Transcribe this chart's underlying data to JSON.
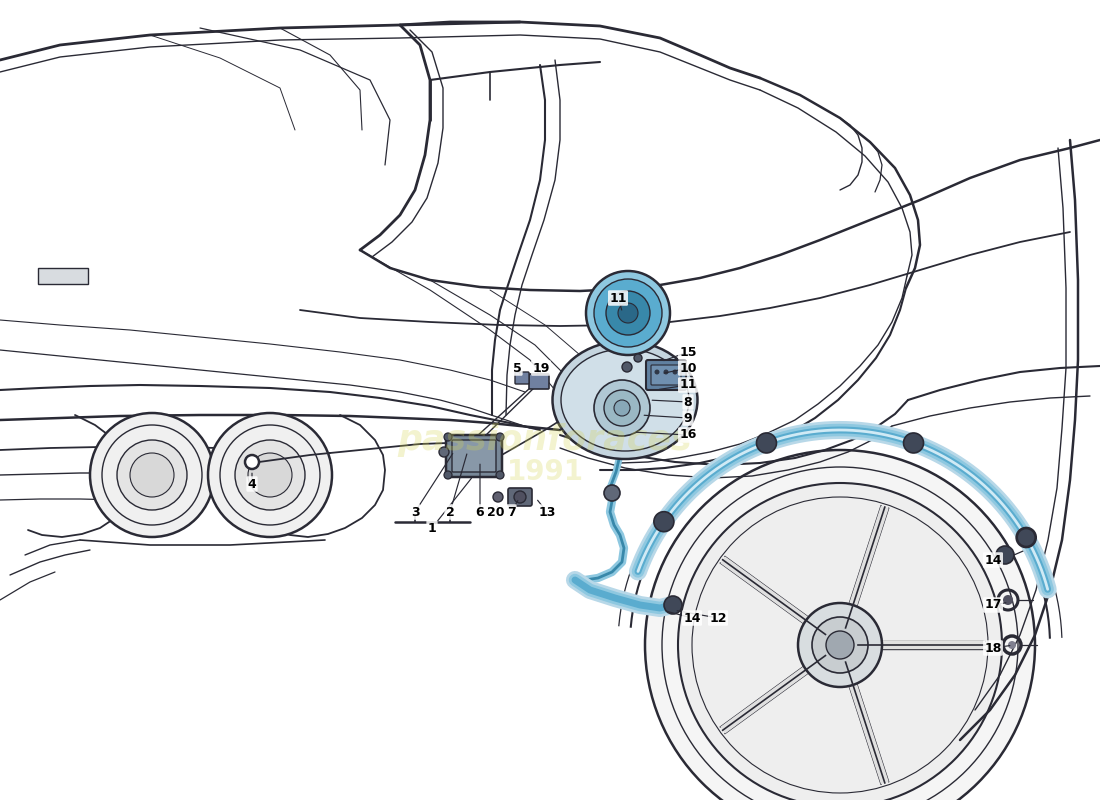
{
  "bg_color": "#ffffff",
  "lc": "#2a2a35",
  "light_blue": "#8ec8e0",
  "mid_blue": "#5aaccf",
  "dark_blue": "#3888aa",
  "watermark1": "passionforaces",
  "watermark2": "1991",
  "wm_color": "#d4d455",
  "wm_alpha": 0.28,
  "label_fs": 9,
  "label_color": "#000000"
}
